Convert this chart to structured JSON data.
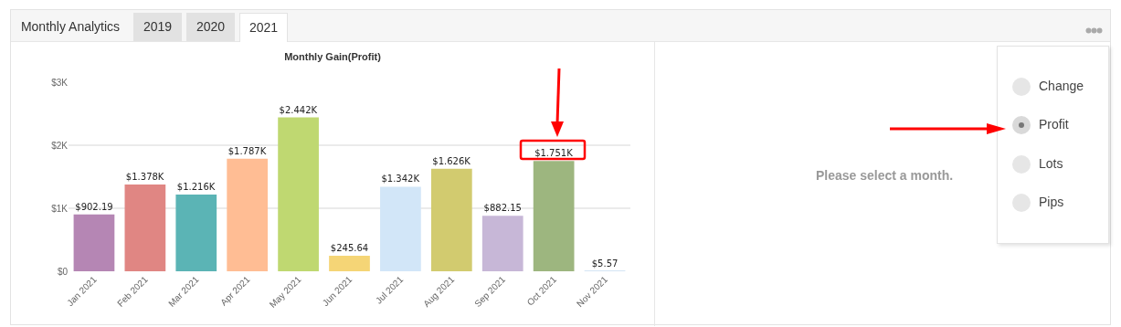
{
  "chart_data": {
    "type": "bar",
    "title": "Monthly Gain(Profit)",
    "categories": [
      "Jan 2021",
      "Feb 2021",
      "Mar 2021",
      "Apr 2021",
      "May 2021",
      "Jun 2021",
      "Jul 2021",
      "Aug 2021",
      "Sep 2021",
      "Oct 2021",
      "Nov 2021"
    ],
    "values": [
      902.19,
      1378,
      1216,
      1787,
      2442,
      245.64,
      1342,
      1626,
      882.15,
      1751,
      5.57
    ],
    "value_labels": [
      "$902.19",
      "$1.378K",
      "$1.216K",
      "$1.787K",
      "$2.442K",
      "$245.64",
      "$1.342K",
      "$1.626K",
      "$882.15",
      "$1.751K",
      "$5.57"
    ],
    "colors": [
      "#b586b4",
      "#e08683",
      "#5bb4b5",
      "#ffbd94",
      "#bfd871",
      "#f5d576",
      "#d2e6f8",
      "#d2cb6f",
      "#c7b7d7",
      "#9db67f",
      "#a9c9e9"
    ],
    "ylim": [
      0,
      3000
    ],
    "yticks": [
      {
        "value": 0,
        "label": "$0"
      },
      {
        "value": 1000,
        "label": "$1K"
      },
      {
        "value": 2000,
        "label": "$2K"
      },
      {
        "value": 3000,
        "label": "$3K"
      }
    ],
    "grid": "y",
    "legend": false,
    "annotations": [
      "Monthly Analytics",
      "2019",
      "2020",
      "2021",
      "Please select a month.",
      "Change",
      "Profit",
      "Lots",
      "Pips"
    ]
  }
}
